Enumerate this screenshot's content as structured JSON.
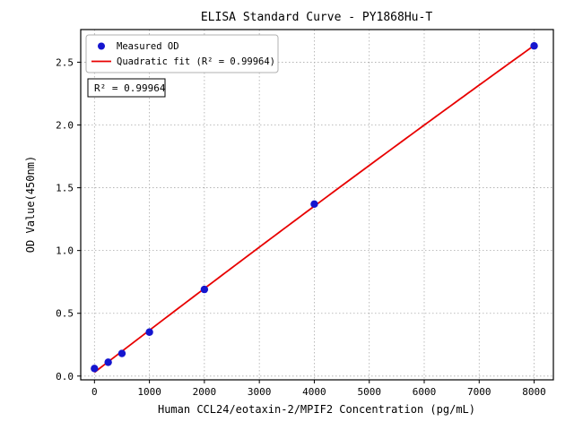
{
  "chart_data": {
    "type": "scatter",
    "title": "ELISA Standard Curve - PY1868Hu-T",
    "xlabel": "Human CCL24/eotaxin-2/MPIF2 Concentration (pg/mL)",
    "ylabel": "OD Value(450nm)",
    "x": [
      0,
      250,
      500,
      1000,
      2000,
      4000,
      8000
    ],
    "y": [
      0.06,
      0.11,
      0.18,
      0.35,
      0.69,
      1.37,
      2.63
    ],
    "fit_type": "quadratic",
    "r_squared": "0.99964",
    "annotation": "R² = 0.99964",
    "xticks": [
      0,
      1000,
      2000,
      3000,
      4000,
      5000,
      6000,
      7000,
      8000
    ],
    "yticks": [
      0.0,
      0.5,
      1.0,
      1.5,
      2.0,
      2.5
    ],
    "xlim": [
      -250,
      8350
    ],
    "ylim": [
      -0.03,
      2.76
    ],
    "grid": true,
    "legend_position": "upper left",
    "legend": [
      {
        "label": "Measured OD",
        "marker": "circle",
        "color": "#1515cf"
      },
      {
        "label": "Quadratic fit (R² = 0.99964)",
        "marker": "line",
        "color": "#e80000"
      }
    ],
    "point_color": "#1515cf",
    "line_color": "#e80000"
  }
}
